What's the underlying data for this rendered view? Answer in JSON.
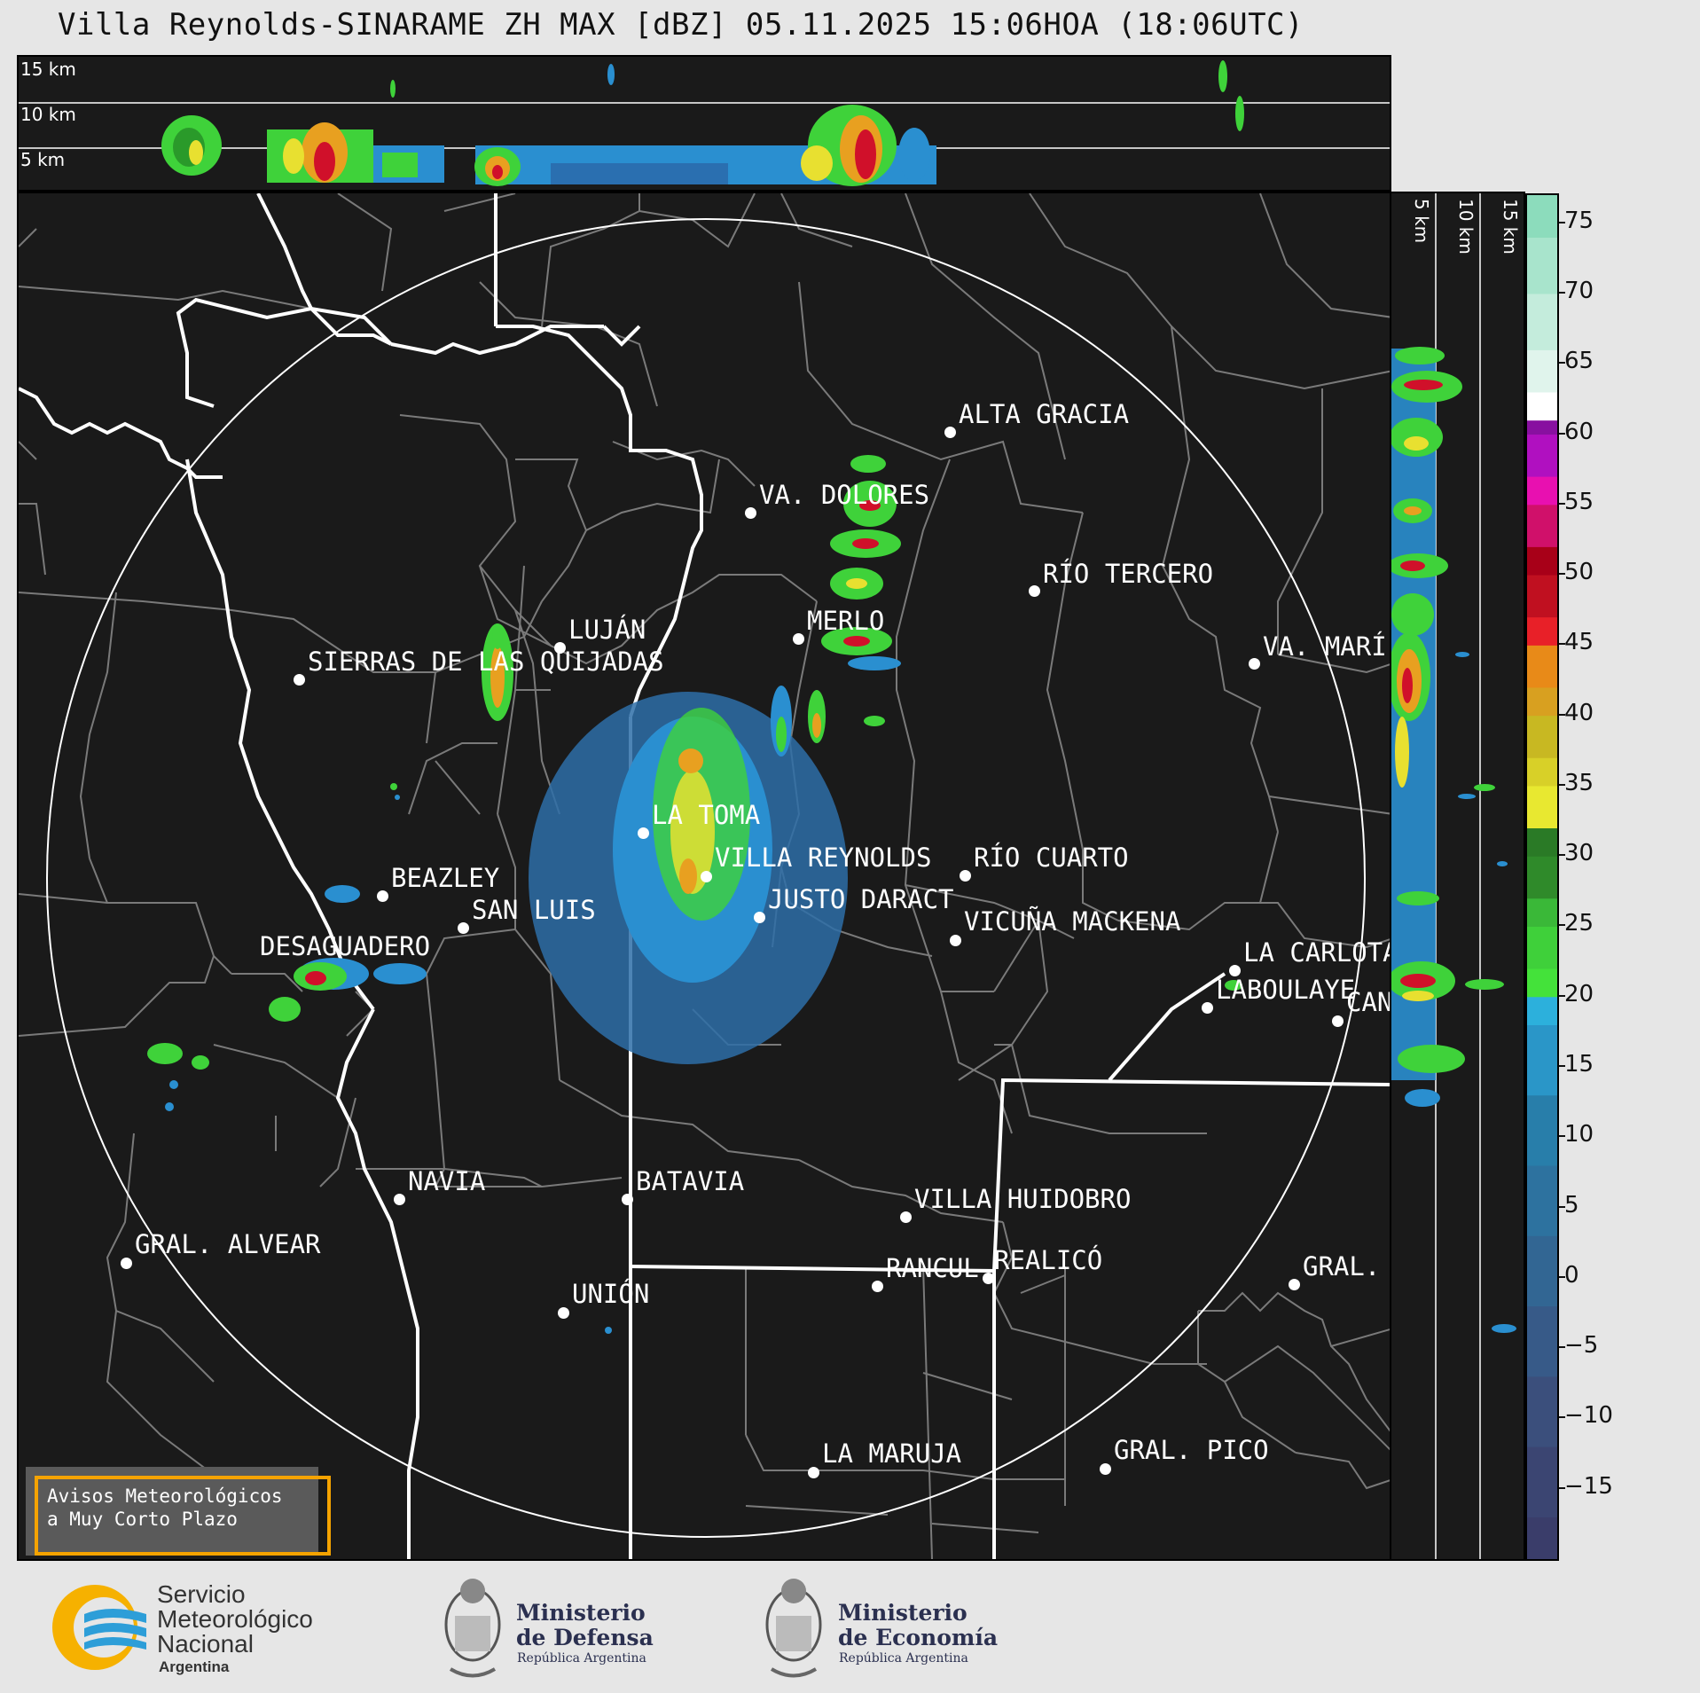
{
  "title": "Villa Reynolds-SINARAME ZH MAX [dBZ] 05.11.2025 15:06HOA (18:06UTC)",
  "altitude_labels": [
    "15 km",
    "10 km",
    "5 km"
  ],
  "side_altitude_labels": [
    "5 km",
    "10 km",
    "15 km"
  ],
  "colorbar": {
    "ticks": [
      "75",
      "70",
      "65",
      "60",
      "55",
      "50",
      "45",
      "40",
      "35",
      "30",
      "25",
      "20",
      "15",
      "10",
      "5",
      "0",
      "−5",
      "−10",
      "−15"
    ],
    "range": [
      -20,
      77
    ]
  },
  "cities": [
    {
      "name": "ALTA GRACIA"
    },
    {
      "name": "VA. DOLORES"
    },
    {
      "name": "RÍO TERCERO"
    },
    {
      "name": "LUJÁN"
    },
    {
      "name": "MERLO"
    },
    {
      "name": "SIERRAS DE LAS QUIJADAS"
    },
    {
      "name": "VA. MARÍ"
    },
    {
      "name": "LA TOMA"
    },
    {
      "name": "RÍO CUARTO"
    },
    {
      "name": "SAN LUIS"
    },
    {
      "name": "DESAGUADERO"
    },
    {
      "name": "LA CARLOTA"
    },
    {
      "name": "CAN"
    },
    {
      "name": "VILLA REYNOLDS"
    },
    {
      "name": "BEAZLEY"
    },
    {
      "name": "JUSTO DARACT"
    },
    {
      "name": "VICUÑA MACKENA"
    },
    {
      "name": "LABOULAYE"
    },
    {
      "name": "NAVIA"
    },
    {
      "name": "BATAVIA"
    },
    {
      "name": "VILLA HUIDOBRO"
    },
    {
      "name": "GRAL. ALVEAR"
    },
    {
      "name": "RANCUL"
    },
    {
      "name": "REALICÓ"
    },
    {
      "name": "GRAL."
    },
    {
      "name": "UNIÓN"
    },
    {
      "name": "LA MARUJA"
    },
    {
      "name": "GRAL. PICO"
    }
  ],
  "aviso": {
    "line1": "Avisos Meteorológicos",
    "line2": "a Muy Corto Plazo"
  },
  "footer": {
    "smn": {
      "line1": "Servicio",
      "line2": "Meteorológico",
      "line3": "Nacional",
      "line4": "Argentina"
    },
    "defensa": {
      "line1": "Ministerio",
      "line2": "de Defensa",
      "line3": "República Argentina"
    },
    "economia": {
      "line1": "Ministerio",
      "line2": "de Economía",
      "line3": "República Argentina"
    }
  }
}
